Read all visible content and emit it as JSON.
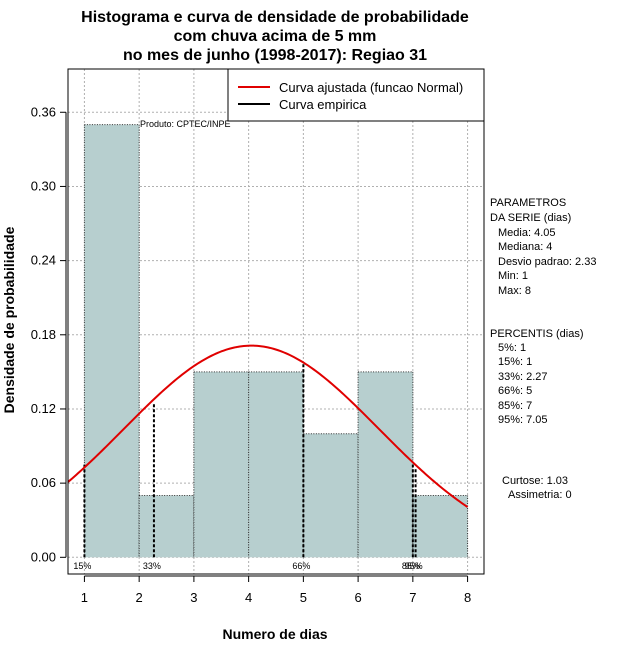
{
  "chart_data": {
    "type": "bar",
    "title": [
      "Histograma e curva de densidade de probabilidade",
      "com chuva acima de 5 mm",
      "no mes de junho (1998-2017): Regiao 31"
    ],
    "xlabel": "Numero de dias",
    "ylabel": "Densidade de probabilidade",
    "xlim": [
      0.7,
      8.3
    ],
    "ylim": [
      -0.0135,
      0.395
    ],
    "x_ticks": [
      1,
      2,
      3,
      4,
      5,
      6,
      7,
      8
    ],
    "y_ticks": [
      0.0,
      0.06,
      0.12,
      0.18,
      0.24,
      0.3,
      0.36
    ],
    "y_tick_labels": [
      "0.00",
      "0.06",
      "0.12",
      "0.18",
      "0.24",
      "0.30",
      "0.36"
    ],
    "bins": [
      {
        "x0": 1,
        "x1": 2,
        "density": 0.35
      },
      {
        "x0": 2,
        "x1": 3,
        "density": 0.05
      },
      {
        "x0": 3,
        "x1": 4,
        "density": 0.15
      },
      {
        "x0": 4,
        "x1": 5,
        "density": 0.15
      },
      {
        "x0": 5,
        "x1": 6,
        "density": 0.1
      },
      {
        "x0": 6,
        "x1": 7,
        "density": 0.15
      },
      {
        "x0": 7,
        "x1": 8,
        "density": 0.05
      }
    ],
    "normal_fit": {
      "mean": 4.05,
      "sd": 2.33,
      "color": "#e00000"
    },
    "bar_color": "#b7cfcf",
    "percentile_lines": [
      {
        "label": "15%",
        "x": 1,
        "height": 0.075
      },
      {
        "label": "33%",
        "x": 2.27,
        "height": 0.125
      },
      {
        "label": "66%",
        "x": 5,
        "height": 0.158
      },
      {
        "label": "85%",
        "x": 7,
        "height": 0.075
      },
      {
        "label": "95%",
        "x": 7.05,
        "height": 0.072
      }
    ],
    "legend": [
      {
        "label": "Curva ajustada (funcao Normal)",
        "color": "#e00000"
      },
      {
        "label": "Curva empirica",
        "color": "#000000"
      }
    ],
    "product_label": "Produto: CPTEC/INPE"
  },
  "side_panel": {
    "params_title": [
      "PARAMETROS",
      "DA SERIE (dias)"
    ],
    "params": [
      "Media: 4.05",
      "Mediana: 4",
      "Desvio padrao: 2.33",
      "Min: 1",
      "Max: 8"
    ],
    "pct_title": "PERCENTIS (dias)",
    "percentis": [
      "5%: 1",
      "15%: 1",
      "33%: 2.27",
      "66%: 5",
      "85%: 7",
      "95%: 7.05"
    ],
    "stats": [
      "Curtose: 1.03",
      "Assimetria: 0"
    ]
  }
}
